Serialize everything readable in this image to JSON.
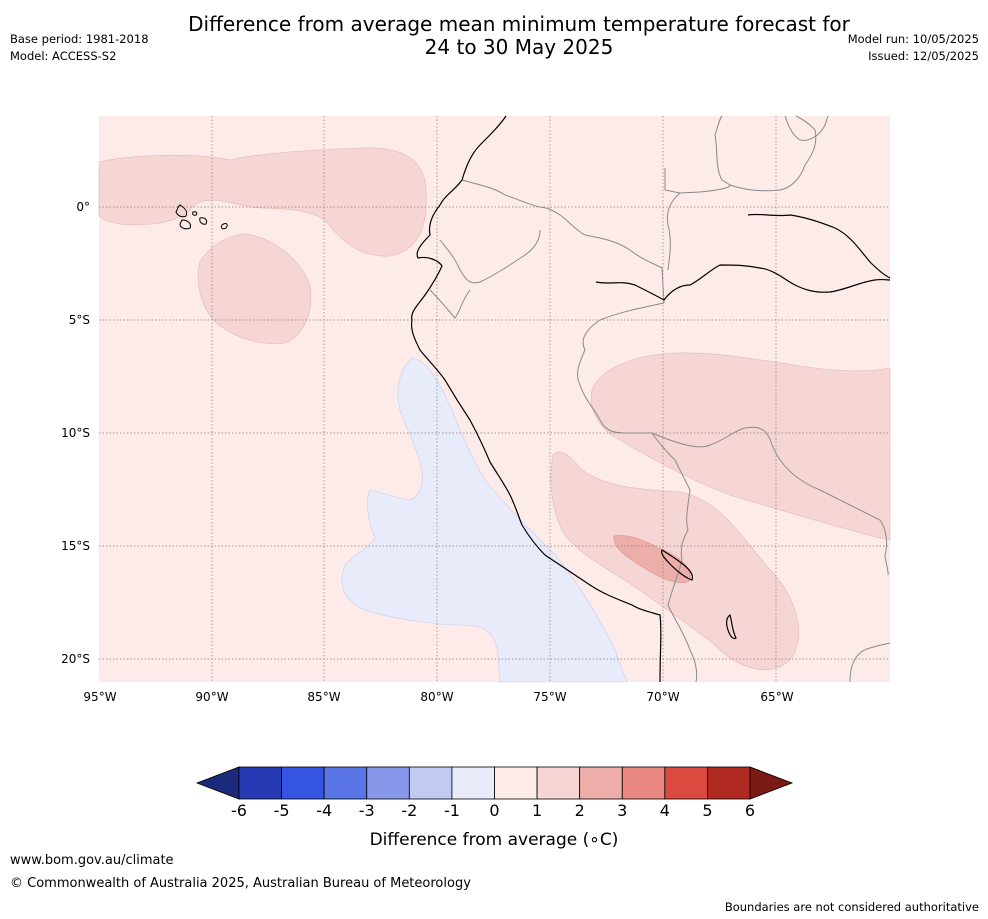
{
  "title": {
    "line1": "Difference from average mean minimum temperature forecast for",
    "line2": "24 to 30 May 2025"
  },
  "meta_left": {
    "base_period": "Base period: 1981-2018",
    "model": "Model: ACCESS-S2"
  },
  "meta_right": {
    "model_run": "Model run: 10/05/2025",
    "issued": "Issued: 12/05/2025"
  },
  "map": {
    "lon_range": [
      -95,
      -60
    ],
    "lat_range": [
      -21,
      4
    ],
    "lon_labels": [
      "95°W",
      "90°W",
      "85°W",
      "80°W",
      "75°W",
      "70°W",
      "65°W"
    ],
    "lat_labels": [
      "0°",
      "5°S",
      "10°S",
      "15°S",
      "20°S"
    ],
    "background_color": "#fcebe9"
  },
  "colorbar": {
    "ticks": [
      "-6",
      "-5",
      "-4",
      "-3",
      "-2",
      "-1",
      "0",
      "1",
      "2",
      "3",
      "4",
      "5",
      "6"
    ],
    "colors": [
      "#1b2a7a",
      "#2539b3",
      "#3355e0",
      "#5a75e6",
      "#8797ea",
      "#c2c9f3",
      "#e8ebfa",
      "#fcebe9",
      "#f6d6d4",
      "#edaea9",
      "#e88880",
      "#db4a3e",
      "#b02a22",
      "#7a1a14"
    ],
    "label": "Difference from average (∘C)"
  },
  "footer": {
    "url": "www.bom.gov.au/climate",
    "copyright": "© Commonwealth of Australia 2025, Australian Bureau of Meteorology",
    "note": "Boundaries are not considered authoritative"
  }
}
